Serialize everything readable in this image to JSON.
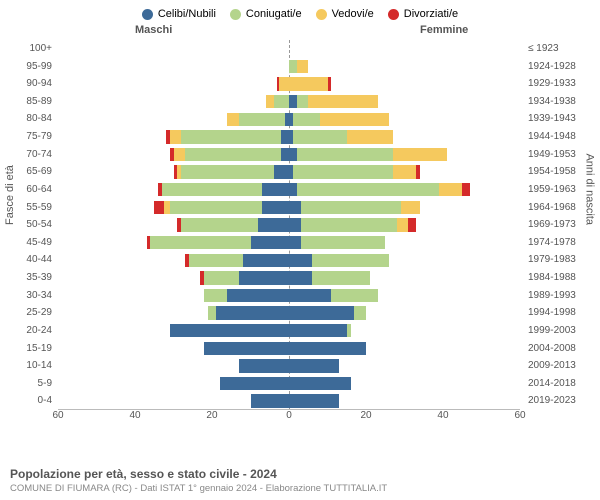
{
  "legend": [
    {
      "label": "Celibi/Nubili",
      "color": "#3d6a98"
    },
    {
      "label": "Coniugati/e",
      "color": "#b4d48c"
    },
    {
      "label": "Vedovi/e",
      "color": "#f5c95e"
    },
    {
      "label": "Divorziati/e",
      "color": "#d42a2a"
    }
  ],
  "header_male": "Maschi",
  "header_female": "Femmine",
  "y_axis_left_label": "Fasce di età",
  "y_axis_right_label": "Anni di nascita",
  "x_axis": {
    "min": -60,
    "max": 60,
    "ticks": [
      60,
      40,
      20,
      0,
      20,
      40,
      60
    ],
    "tick_positions_pct": [
      0,
      16.67,
      33.33,
      50,
      66.67,
      83.33,
      100
    ]
  },
  "title": "Popolazione per età, sesso e stato civile - 2024",
  "subtitle": "COMUNE DI FIUMARA (RC) - Dati ISTAT 1° gennaio 2024 - Elaborazione TUTTITALIA.IT",
  "colors": {
    "single": "#3d6a98",
    "married": "#b4d48c",
    "widowed": "#f5c95e",
    "divorced": "#d42a2a",
    "grid": "#bbbbbb",
    "zero": "#999999",
    "text": "#555555",
    "subtext": "#888888",
    "bg": "#ffffff"
  },
  "rows": [
    {
      "age": "100+",
      "birth": "≤ 1923",
      "m": {
        "s": 0,
        "m": 0,
        "w": 0,
        "d": 0
      },
      "f": {
        "s": 0,
        "m": 0,
        "w": 0,
        "d": 0
      }
    },
    {
      "age": "95-99",
      "birth": "1924-1928",
      "m": {
        "s": 0,
        "m": 0,
        "w": 0,
        "d": 0
      },
      "f": {
        "s": 0,
        "m": 2,
        "w": 3,
        "d": 0
      }
    },
    {
      "age": "90-94",
      "birth": "1929-1933",
      "m": {
        "s": 0,
        "m": 0,
        "w": 2.5,
        "d": 0.5
      },
      "f": {
        "s": 0,
        "m": 0,
        "w": 10,
        "d": 1
      }
    },
    {
      "age": "85-89",
      "birth": "1934-1938",
      "m": {
        "s": 0,
        "m": 4,
        "w": 2,
        "d": 0
      },
      "f": {
        "s": 2,
        "m": 3,
        "w": 18,
        "d": 0
      }
    },
    {
      "age": "80-84",
      "birth": "1939-1943",
      "m": {
        "s": 1,
        "m": 12,
        "w": 3,
        "d": 0
      },
      "f": {
        "s": 1,
        "m": 7,
        "w": 18,
        "d": 0
      }
    },
    {
      "age": "75-79",
      "birth": "1944-1948",
      "m": {
        "s": 2,
        "m": 26,
        "w": 3,
        "d": 1
      },
      "f": {
        "s": 1,
        "m": 14,
        "w": 12,
        "d": 0
      }
    },
    {
      "age": "70-74",
      "birth": "1949-1953",
      "m": {
        "s": 2,
        "m": 25,
        "w": 3,
        "d": 1
      },
      "f": {
        "s": 2,
        "m": 25,
        "w": 14,
        "d": 0
      }
    },
    {
      "age": "65-69",
      "birth": "1954-1958",
      "m": {
        "s": 4,
        "m": 24,
        "w": 1,
        "d": 1
      },
      "f": {
        "s": 1,
        "m": 26,
        "w": 6,
        "d": 1
      }
    },
    {
      "age": "60-64",
      "birth": "1959-1963",
      "m": {
        "s": 7,
        "m": 26,
        "w": 0,
        "d": 1
      },
      "f": {
        "s": 2,
        "m": 37,
        "w": 6,
        "d": 2
      }
    },
    {
      "age": "55-59",
      "birth": "1964-1968",
      "m": {
        "s": 7,
        "m": 24,
        "w": 1.5,
        "d": 2.5
      },
      "f": {
        "s": 3,
        "m": 26,
        "w": 5,
        "d": 0
      }
    },
    {
      "age": "50-54",
      "birth": "1969-1973",
      "m": {
        "s": 8,
        "m": 20,
        "w": 0,
        "d": 1
      },
      "f": {
        "s": 3,
        "m": 25,
        "w": 3,
        "d": 2
      }
    },
    {
      "age": "45-49",
      "birth": "1974-1978",
      "m": {
        "s": 10,
        "m": 26,
        "w": 0,
        "d": 1
      },
      "f": {
        "s": 3,
        "m": 22,
        "w": 0,
        "d": 0
      }
    },
    {
      "age": "40-44",
      "birth": "1979-1983",
      "m": {
        "s": 12,
        "m": 14,
        "w": 0,
        "d": 1
      },
      "f": {
        "s": 6,
        "m": 20,
        "w": 0,
        "d": 0
      }
    },
    {
      "age": "35-39",
      "birth": "1984-1988",
      "m": {
        "s": 13,
        "m": 9,
        "w": 0,
        "d": 1
      },
      "f": {
        "s": 6,
        "m": 15,
        "w": 0,
        "d": 0
      }
    },
    {
      "age": "30-34",
      "birth": "1989-1993",
      "m": {
        "s": 16,
        "m": 6,
        "w": 0,
        "d": 0
      },
      "f": {
        "s": 11,
        "m": 12,
        "w": 0,
        "d": 0
      }
    },
    {
      "age": "25-29",
      "birth": "1994-1998",
      "m": {
        "s": 19,
        "m": 2,
        "w": 0,
        "d": 0
      },
      "f": {
        "s": 17,
        "m": 3,
        "w": 0,
        "d": 0
      }
    },
    {
      "age": "20-24",
      "birth": "1999-2003",
      "m": {
        "s": 31,
        "m": 0,
        "w": 0,
        "d": 0
      },
      "f": {
        "s": 15,
        "m": 1,
        "w": 0,
        "d": 0
      }
    },
    {
      "age": "15-19",
      "birth": "2004-2008",
      "m": {
        "s": 22,
        "m": 0,
        "w": 0,
        "d": 0
      },
      "f": {
        "s": 20,
        "m": 0,
        "w": 0,
        "d": 0
      }
    },
    {
      "age": "10-14",
      "birth": "2009-2013",
      "m": {
        "s": 13,
        "m": 0,
        "w": 0,
        "d": 0
      },
      "f": {
        "s": 13,
        "m": 0,
        "w": 0,
        "d": 0
      }
    },
    {
      "age": "5-9",
      "birth": "2014-2018",
      "m": {
        "s": 18,
        "m": 0,
        "w": 0,
        "d": 0
      },
      "f": {
        "s": 16,
        "m": 0,
        "w": 0,
        "d": 0
      }
    },
    {
      "age": "0-4",
      "birth": "2019-2023",
      "m": {
        "s": 10,
        "m": 0,
        "w": 0,
        "d": 0
      },
      "f": {
        "s": 13,
        "m": 0,
        "w": 0,
        "d": 0
      }
    }
  ],
  "scale": {
    "half_max": 60
  }
}
